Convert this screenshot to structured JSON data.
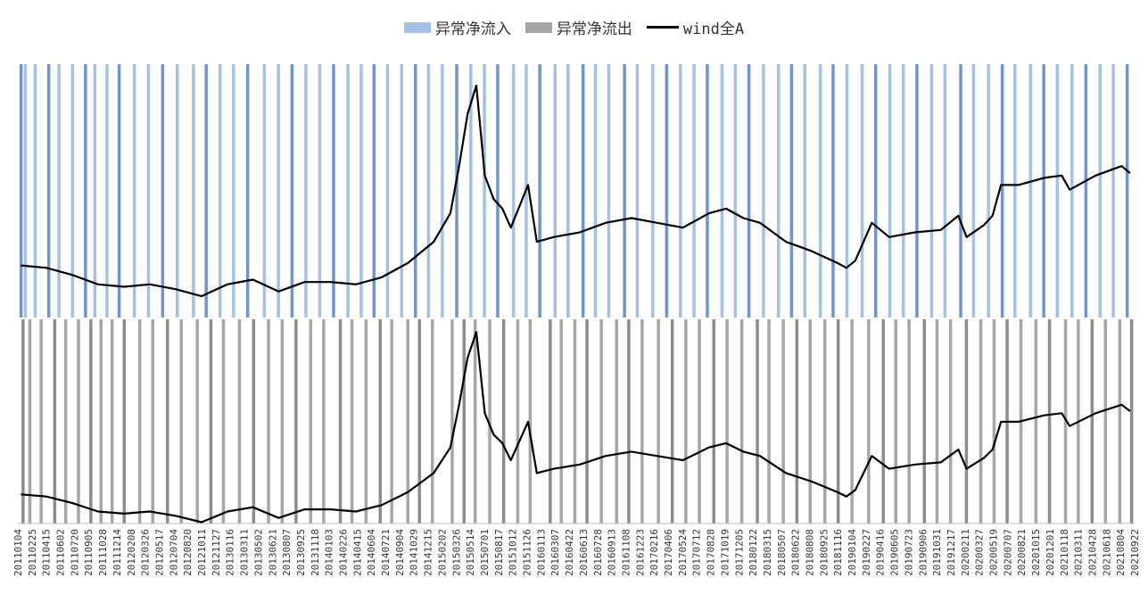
{
  "legend": {
    "inflow": "异常净流入",
    "outflow": "异常净流出",
    "index": "wind全A"
  },
  "colors": {
    "inflow": "#a3c0e6",
    "inflow_dark": "#6f96cc",
    "outflow": "#a6a6a6",
    "outflow_dark": "#8c8c8c",
    "line": "#000000"
  },
  "chart_data": {
    "type": "line",
    "panels": 2,
    "x_tick_labels": [
      "20110104",
      "20110225",
      "20110415",
      "20110602",
      "20110720",
      "20110905",
      "20111028",
      "20111214",
      "20120208",
      "20120326",
      "20120517",
      "20120704",
      "20120820",
      "20121011",
      "20121127",
      "20130116",
      "20130311",
      "20130502",
      "20130621",
      "20130807",
      "20130925",
      "20131118",
      "20140103",
      "20140226",
      "20140415",
      "20140604",
      "20140721",
      "20140904",
      "20141029",
      "20141215",
      "20150202",
      "20150326",
      "20150514",
      "20150701",
      "20150817",
      "20151012",
      "20151126",
      "20160113",
      "20160307",
      "20160422",
      "20160613",
      "20160728",
      "20160913",
      "20161108",
      "20161223",
      "20170216",
      "20170406",
      "20170524",
      "20170712",
      "20170828",
      "20171019",
      "20171205",
      "20180122",
      "20180315",
      "20180507",
      "20180622",
      "20180808",
      "20180925",
      "20181116",
      "20190104",
      "20190227",
      "20190416",
      "20190605",
      "20190723",
      "20190906",
      "20191031",
      "20191217",
      "20200211",
      "20200327",
      "20200519",
      "20200707",
      "20200821",
      "20201015",
      "20201201",
      "20210118",
      "20210311",
      "20210428",
      "20210618",
      "20210804",
      "20210922"
    ],
    "series": [
      {
        "name": "wind全A",
        "x": [
          "2011-01",
          "2011-04",
          "2011-07",
          "2011-10",
          "2012-01",
          "2012-04",
          "2012-07",
          "2012-10",
          "2013-01",
          "2013-04",
          "2013-07",
          "2013-10",
          "2014-01",
          "2014-04",
          "2014-07",
          "2014-10",
          "2015-01",
          "2015-03",
          "2015-04",
          "2015-05",
          "2015-06",
          "2015-07",
          "2015-08",
          "2015-09",
          "2015-10",
          "2015-12",
          "2016-01",
          "2016-03",
          "2016-06",
          "2016-09",
          "2016-12",
          "2017-03",
          "2017-06",
          "2017-09",
          "2017-11",
          "2018-01",
          "2018-03",
          "2018-06",
          "2018-09",
          "2018-12",
          "2019-01",
          "2019-02",
          "2019-04",
          "2019-06",
          "2019-09",
          "2019-12",
          "2020-02",
          "2020-03",
          "2020-05",
          "2020-06",
          "2020-07",
          "2020-09",
          "2020-12",
          "2021-02",
          "2021-03",
          "2021-06",
          "2021-09",
          "2021-10"
        ],
        "y": [
          3100,
          3050,
          2900,
          2700,
          2650,
          2700,
          2600,
          2450,
          2700,
          2800,
          2550,
          2750,
          2750,
          2700,
          2850,
          3150,
          3600,
          4200,
          5200,
          6300,
          6900,
          5000,
          4500,
          4300,
          3900,
          4800,
          3600,
          3700,
          3800,
          4000,
          4100,
          4000,
          3900,
          4200,
          4300,
          4100,
          4000,
          3600,
          3400,
          3150,
          3050,
          3200,
          4000,
          3700,
          3800,
          3850,
          4150,
          3700,
          3950,
          4150,
          4800,
          4800,
          4950,
          5000,
          4700,
          5000,
          5200,
          5050
        ]
      }
    ],
    "inflow_bars": {
      "name": "异常净流入",
      "dates": [
        "20110110",
        "20110125",
        "20110301",
        "20110418",
        "20110524",
        "20110711",
        "20110826",
        "20110928",
        "20111110",
        "20111223",
        "20120215",
        "20120405",
        "20120525",
        "20120716",
        "20120911",
        "20121026",
        "20121214",
        "20130131",
        "20130322",
        "20130520",
        "20130709",
        "20130826",
        "20131014",
        "20131202",
        "20140120",
        "20140312",
        "20140428",
        "20140612",
        "20140730",
        "20140918",
        "20141106",
        "20141222",
        "20150209",
        "20150401",
        "20150521",
        "20150708",
        "20150824",
        "20151019",
        "20151203",
        "20160120",
        "20160314",
        "20160429",
        "20160621",
        "20160804",
        "20160920",
        "20161115",
        "20161230",
        "20170223",
        "20170413",
        "20170601",
        "20170719",
        "20170904",
        "20171026",
        "20171212",
        "20180129",
        "20180322",
        "20180514",
        "20180629",
        "20180815",
        "20181009",
        "20181123",
        "20190111",
        "20190306",
        "20190423",
        "20190612",
        "20190730",
        "20190916",
        "20191107",
        "20191224",
        "20200218",
        "20200403",
        "20200526",
        "20200714",
        "20200828",
        "20201022",
        "20201208",
        "20210125",
        "20210318",
        "20210506",
        "20210625",
        "20210811",
        "20210929"
      ]
    },
    "outflow_bars": {
      "name": "异常净流出",
      "dates": [
        "20110117",
        "20110210",
        "20110322",
        "20110509",
        "20110617",
        "20110801",
        "20110914",
        "20111020",
        "20111128",
        "20120110",
        "20120305",
        "20120420",
        "20120611",
        "20120730",
        "20120925",
        "20121112",
        "20121226",
        "20130221",
        "20130412",
        "20130604",
        "20130722",
        "20130909",
        "20131031",
        "20131216",
        "20140213",
        "20140326",
        "20140515",
        "20140704",
        "20140814",
        "20141010",
        "20141120",
        "20150105",
        "20150316",
        "20150427",
        "20150605",
        "20150727",
        "20150914",
        "20151103",
        "20151217",
        "20160226",
        "20160405",
        "20160523",
        "20160705",
        "20160825",
        "20161018",
        "20161130",
        "20170116",
        "20170315",
        "20170503",
        "20170620",
        "20170807",
        "20170927",
        "20171113",
        "20180104",
        "20180228",
        "20180410",
        "20180531",
        "20180718",
        "20180903",
        "20181025",
        "20181211",
        "20190129",
        "20190329",
        "20190520",
        "20190703",
        "20190819",
        "20191012",
        "20191126",
        "20200113",
        "20200309",
        "20200429",
        "20200615",
        "20200731",
        "20200918",
        "20201110",
        "20201228",
        "20210223",
        "20210409",
        "20210528",
        "20210714",
        "20210903",
        "20211015"
      ]
    },
    "x_range": [
      "2011-01-04",
      "2021-10-31"
    ],
    "grid": false,
    "legend_position": "top-center"
  }
}
